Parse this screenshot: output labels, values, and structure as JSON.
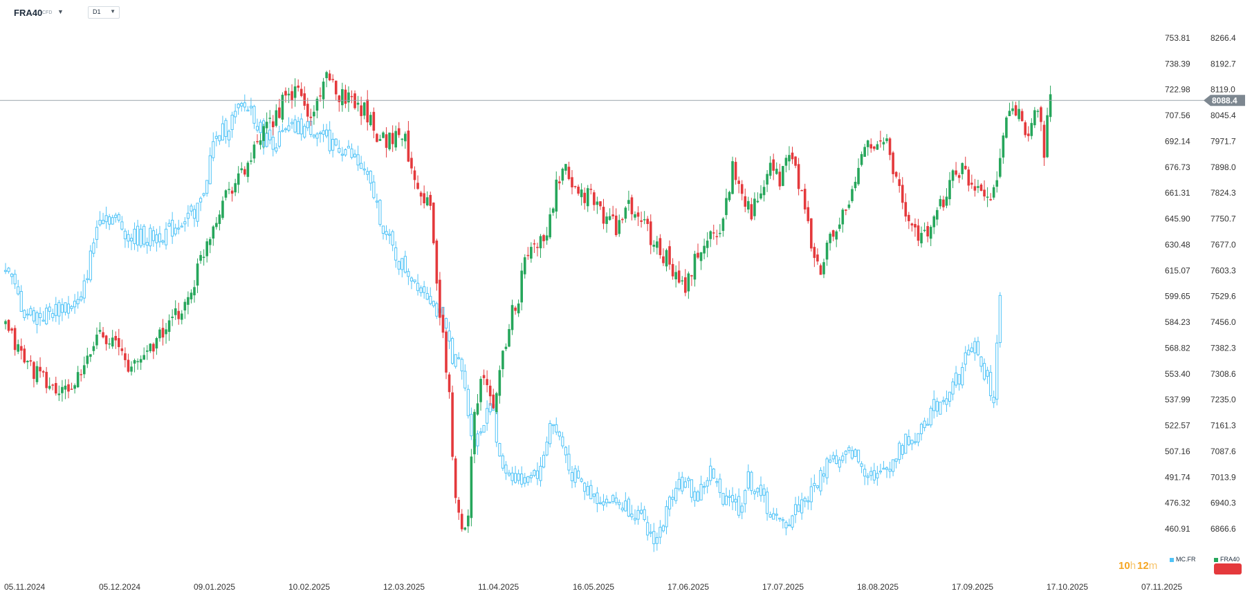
{
  "header": {
    "symbol": "FRA40",
    "symbol_type": "CFD",
    "timeframe": "D1"
  },
  "timer": {
    "hours": "10",
    "hours_unit": "h",
    "minutes": "12",
    "minutes_unit": "m"
  },
  "legend": [
    {
      "label": "MC.FR",
      "color": "#4fc3f7"
    },
    {
      "label": "FRA40",
      "color": "#26a65b"
    }
  ],
  "current_price_label": "8088.4",
  "chart_data": {
    "type": "candlestick",
    "x_ticks": [
      "05.11.2024",
      "05.12.2024",
      "09.01.2025",
      "10.02.2025",
      "12.03.2025",
      "11.04.2025",
      "16.05.2025",
      "17.06.2025",
      "17.07.2025",
      "18.08.2025",
      "17.09.2025",
      "17.10.2025",
      "07.11.2025"
    ],
    "left_axis_ticks": [
      "753.81",
      "738.39",
      "722.98",
      "707.56",
      "692.14",
      "676.73",
      "661.31",
      "645.90",
      "630.48",
      "615.07",
      "599.65",
      "584.23",
      "568.82",
      "553.40",
      "537.99",
      "522.57",
      "507.16",
      "491.74",
      "476.32",
      "460.91"
    ],
    "right_axis_ticks": [
      "8266.4",
      "8192.7",
      "8119.0",
      "8045.4",
      "7971.7",
      "7898.0",
      "7824.3",
      "7750.7",
      "7677.0",
      "7603.3",
      "7529.6",
      "7456.0",
      "7382.3",
      "7308.6",
      "7235.0",
      "7161.3",
      "7087.6",
      "7013.9",
      "6940.3",
      "6866.6"
    ],
    "right_axis_range": [
      6866.6,
      8266.4
    ],
    "left_axis_range": [
      460.91,
      753.81
    ],
    "current_price": 8088.4,
    "grid": false,
    "legend_position": "bottom-right",
    "series": [
      {
        "name": "FRA40",
        "axis": "right",
        "up_color": "#26a65b",
        "down_color": "#e4393c",
        "anchors": [
          [
            0,
            7440
          ],
          [
            6,
            7350
          ],
          [
            12,
            7290
          ],
          [
            18,
            7250
          ],
          [
            24,
            7300
          ],
          [
            30,
            7440
          ],
          [
            36,
            7380
          ],
          [
            40,
            7320
          ],
          [
            46,
            7390
          ],
          [
            52,
            7445
          ],
          [
            58,
            7520
          ],
          [
            64,
            7690
          ],
          [
            70,
            7830
          ],
          [
            76,
            7890
          ],
          [
            82,
            7990
          ],
          [
            88,
            8080
          ],
          [
            93,
            8120
          ],
          [
            97,
            8030
          ],
          [
            101,
            8150
          ],
          [
            106,
            8110
          ],
          [
            111,
            8090
          ],
          [
            115,
            8050
          ],
          [
            119,
            7980
          ],
          [
            123,
            7980
          ],
          [
            126,
            8000
          ],
          [
            131,
            7850
          ],
          [
            135,
            7780
          ],
          [
            138,
            7480
          ],
          [
            141,
            7240
          ],
          [
            143,
            6940
          ],
          [
            145,
            6850
          ],
          [
            147,
            6930
          ],
          [
            149,
            7220
          ],
          [
            152,
            7300
          ],
          [
            155,
            7200
          ],
          [
            158,
            7370
          ],
          [
            161,
            7490
          ],
          [
            163,
            7520
          ],
          [
            165,
            7640
          ],
          [
            169,
            7680
          ],
          [
            172,
            7700
          ],
          [
            175,
            7840
          ],
          [
            178,
            7880
          ],
          [
            182,
            7830
          ],
          [
            186,
            7810
          ],
          [
            190,
            7760
          ],
          [
            194,
            7730
          ],
          [
            198,
            7780
          ],
          [
            202,
            7750
          ],
          [
            206,
            7680
          ],
          [
            210,
            7640
          ],
          [
            213,
            7580
          ],
          [
            216,
            7550
          ],
          [
            220,
            7650
          ],
          [
            224,
            7700
          ],
          [
            228,
            7740
          ],
          [
            231,
            7900
          ],
          [
            234,
            7830
          ],
          [
            237,
            7770
          ],
          [
            240,
            7810
          ],
          [
            243,
            7890
          ],
          [
            246,
            7860
          ],
          [
            249,
            7940
          ],
          [
            252,
            7860
          ],
          [
            254,
            7760
          ],
          [
            257,
            7640
          ],
          [
            259,
            7600
          ],
          [
            262,
            7690
          ],
          [
            265,
            7740
          ],
          [
            268,
            7780
          ],
          [
            271,
            7900
          ],
          [
            274,
            7990
          ],
          [
            277,
            7950
          ],
          [
            280,
            7970
          ],
          [
            283,
            7860
          ],
          [
            286,
            7760
          ],
          [
            289,
            7720
          ],
          [
            292,
            7700
          ],
          [
            295,
            7740
          ],
          [
            298,
            7800
          ],
          [
            301,
            7880
          ],
          [
            304,
            7890
          ],
          [
            307,
            7850
          ],
          [
            310,
            7850
          ],
          [
            313,
            7800
          ],
          [
            316,
            7930
          ],
          [
            319,
            8070
          ],
          [
            322,
            8040
          ],
          [
            325,
            7960
          ],
          [
            328,
            8080
          ],
          [
            330,
            7950
          ],
          [
            332,
            8090
          ]
        ]
      },
      {
        "name": "MC.FR",
        "axis": "left",
        "up_color": "#4fc3f7",
        "down_color": "#4fc3f7",
        "anchors": [
          [
            0,
            617
          ],
          [
            6,
            590
          ],
          [
            12,
            588
          ],
          [
            18,
            593
          ],
          [
            24,
            596
          ],
          [
            30,
            650
          ],
          [
            35,
            645
          ],
          [
            40,
            635
          ],
          [
            46,
            635
          ],
          [
            52,
            638
          ],
          [
            56,
            645
          ],
          [
            62,
            655
          ],
          [
            66,
            690
          ],
          [
            70,
            700
          ],
          [
            75,
            712
          ],
          [
            78,
            712
          ],
          [
            82,
            694
          ],
          [
            86,
            692
          ],
          [
            90,
            698
          ],
          [
            94,
            700
          ],
          [
            98,
            700
          ],
          [
            103,
            692
          ],
          [
            108,
            687
          ],
          [
            113,
            676
          ],
          [
            117,
            660
          ],
          [
            121,
            635
          ],
          [
            125,
            620
          ],
          [
            130,
            610
          ],
          [
            135,
            600
          ],
          [
            139,
            583
          ],
          [
            142,
            565
          ],
          [
            145,
            555
          ],
          [
            147,
            530
          ],
          [
            149,
            512
          ],
          [
            151,
            520
          ],
          [
            154,
            540
          ],
          [
            157,
            500
          ],
          [
            160,
            495
          ],
          [
            164,
            490
          ],
          [
            167,
            495
          ],
          [
            170,
            495
          ],
          [
            173,
            525
          ],
          [
            176,
            515
          ],
          [
            180,
            495
          ],
          [
            184,
            485
          ],
          [
            188,
            480
          ],
          [
            192,
            478
          ],
          [
            196,
            475
          ],
          [
            200,
            472
          ],
          [
            204,
            458
          ],
          [
            207,
            455
          ],
          [
            210,
            470
          ],
          [
            213,
            490
          ],
          [
            217,
            485
          ],
          [
            220,
            480
          ],
          [
            224,
            495
          ],
          [
            227,
            480
          ],
          [
            230,
            482
          ],
          [
            233,
            473
          ],
          [
            236,
            490
          ],
          [
            240,
            482
          ],
          [
            243,
            470
          ],
          [
            246,
            463
          ],
          [
            249,
            466
          ],
          [
            252,
            475
          ],
          [
            256,
            482
          ],
          [
            259,
            492
          ],
          [
            262,
            505
          ],
          [
            265,
            500
          ],
          [
            269,
            507
          ],
          [
            272,
            498
          ],
          [
            275,
            495
          ],
          [
            278,
            492
          ],
          [
            281,
            500
          ],
          [
            284,
            507
          ],
          [
            287,
            515
          ],
          [
            290,
            520
          ],
          [
            293,
            528
          ],
          [
            296,
            535
          ],
          [
            299,
            542
          ],
          [
            302,
            550
          ],
          [
            304,
            555
          ],
          [
            306,
            570
          ],
          [
            308,
            570
          ],
          [
            310,
            555
          ],
          [
            312,
            550
          ],
          [
            314,
            540
          ],
          [
            316,
            597
          ]
        ]
      }
    ]
  }
}
